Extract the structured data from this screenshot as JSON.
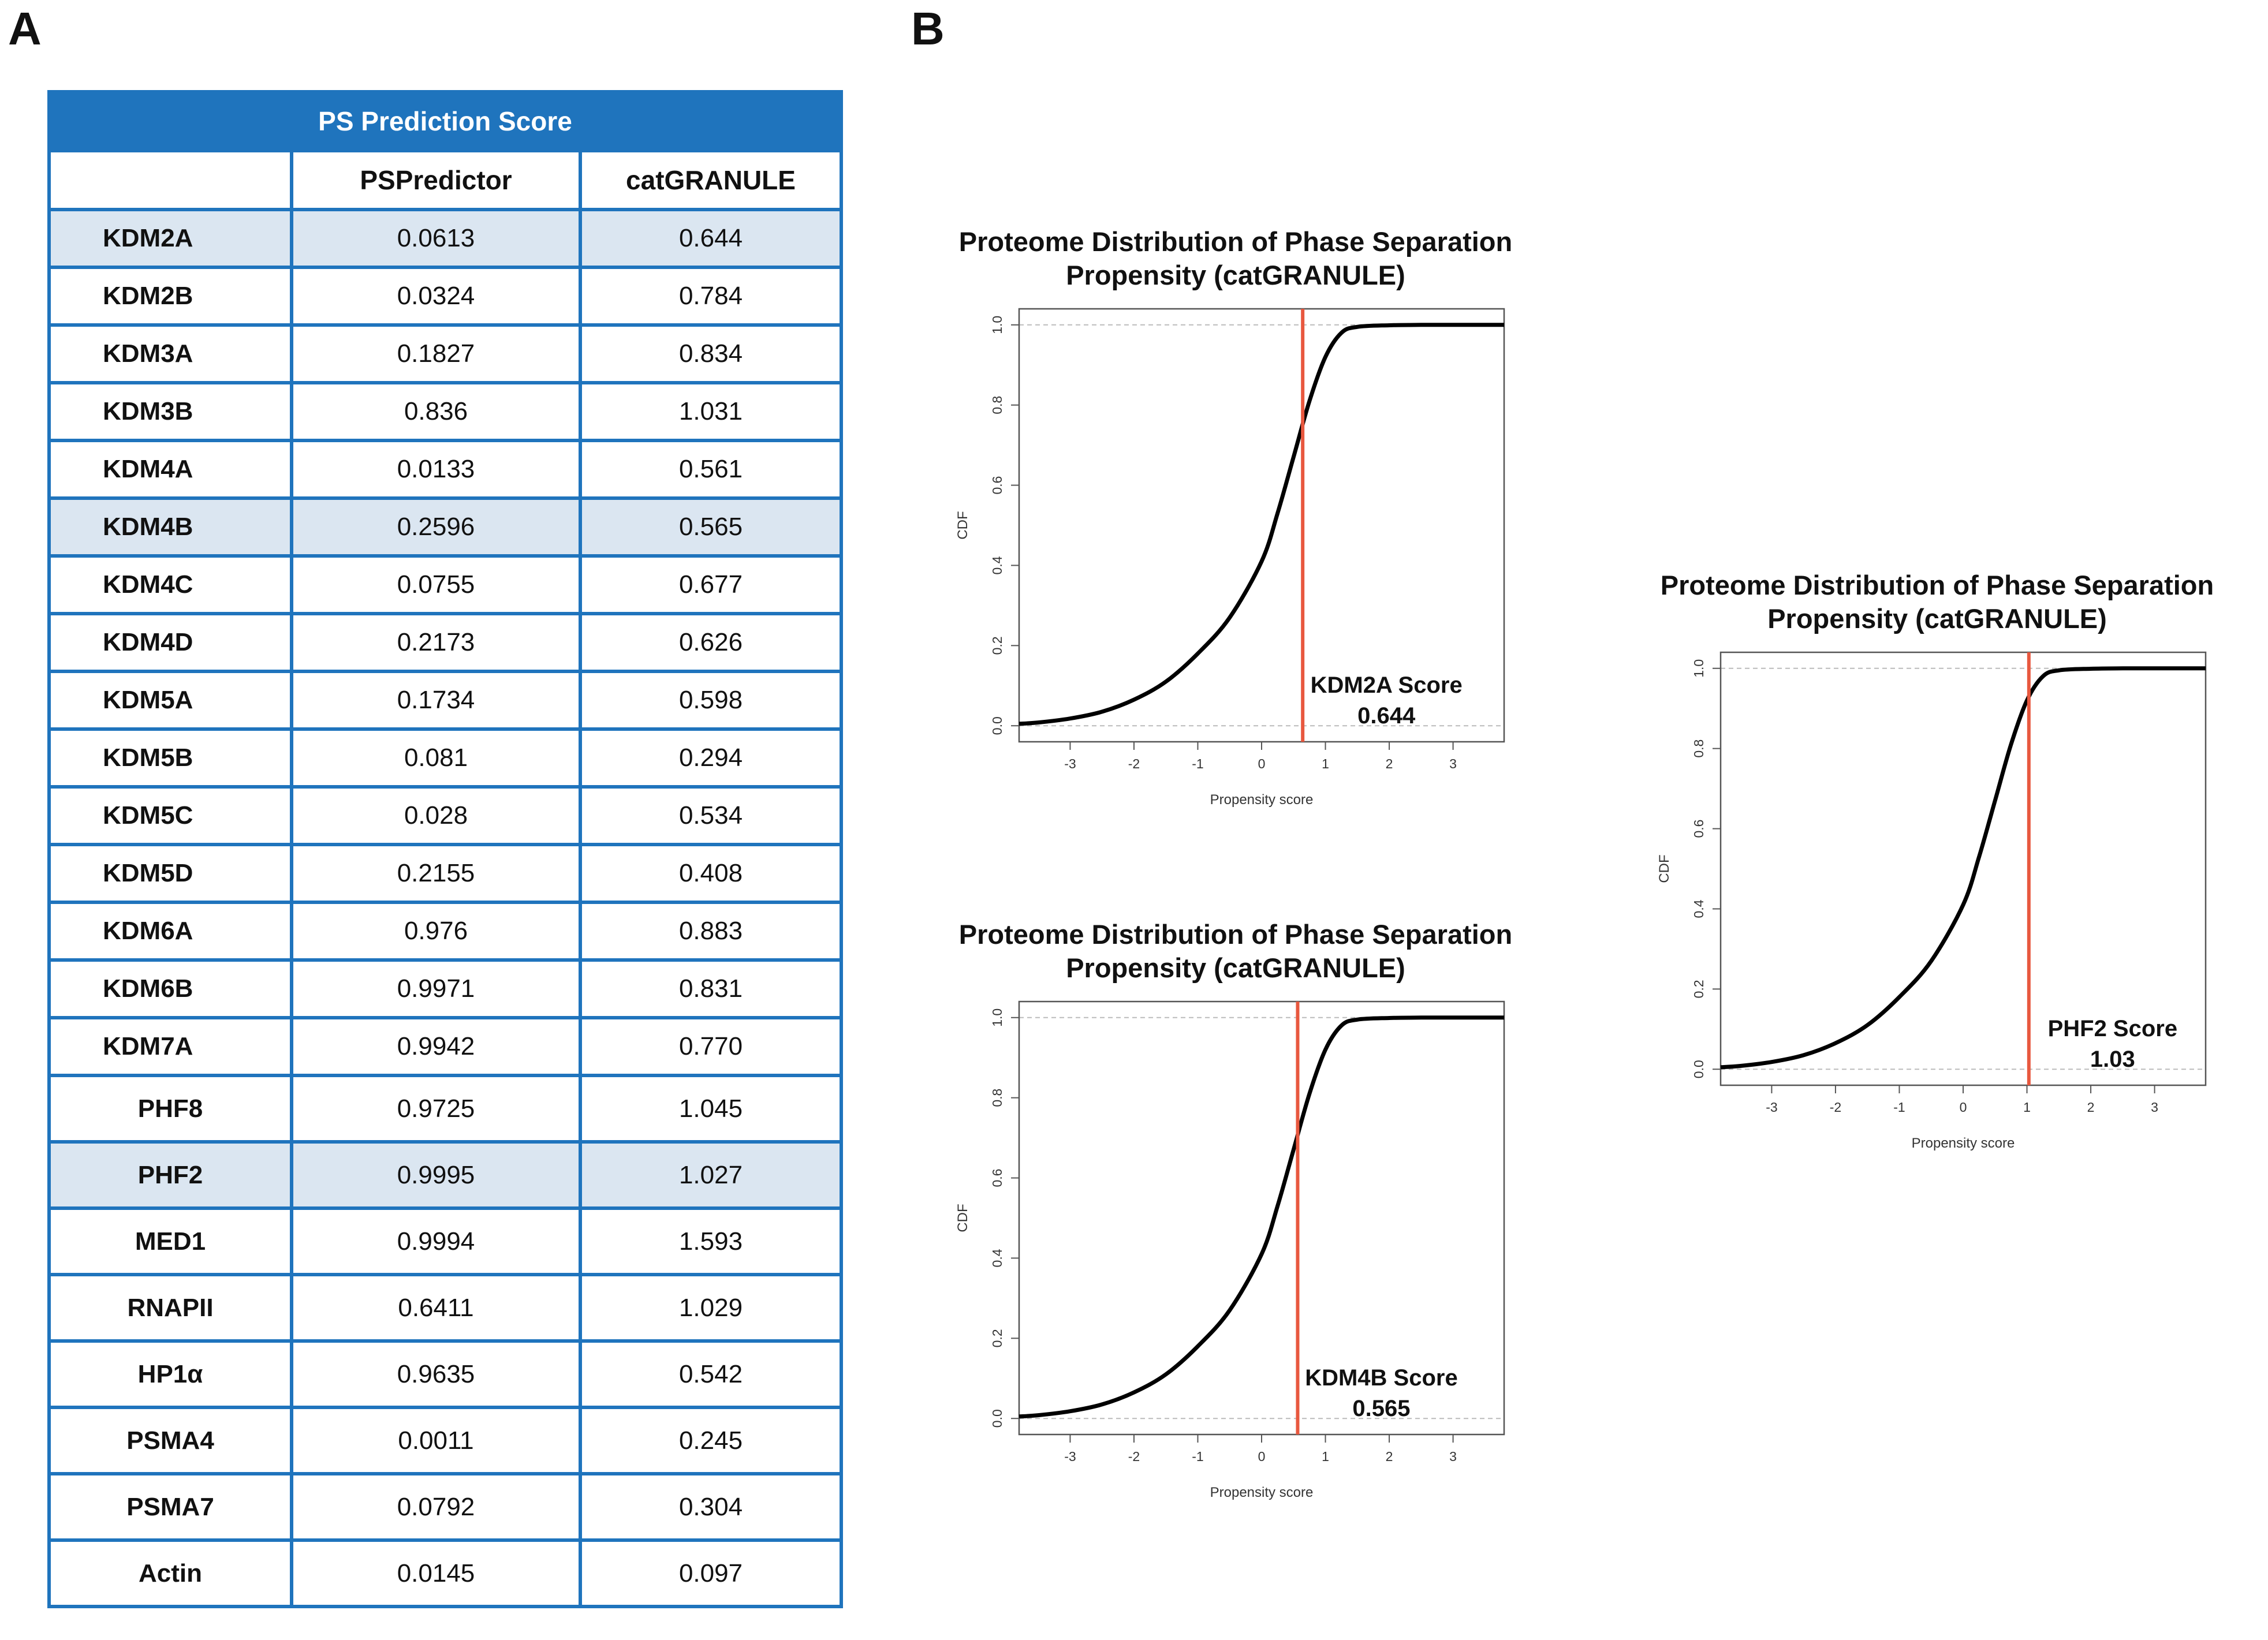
{
  "panels": {
    "a": "A",
    "b": "B"
  },
  "table": {
    "title": "PS Prediction Score",
    "columns": [
      "",
      "PSPredictor",
      "catGRANULE"
    ],
    "rows": [
      {
        "gene": "KDM2A",
        "pspredictor": "0.0613",
        "catgranule": "0.644",
        "highlight": true
      },
      {
        "gene": "KDM2B",
        "pspredictor": "0.0324",
        "catgranule": "0.784",
        "highlight": false
      },
      {
        "gene": "KDM3A",
        "pspredictor": "0.1827",
        "catgranule": "0.834",
        "highlight": false
      },
      {
        "gene": "KDM3B",
        "pspredictor": "0.836",
        "catgranule": "1.031",
        "highlight": false
      },
      {
        "gene": "KDM4A",
        "pspredictor": "0.0133",
        "catgranule": "0.561",
        "highlight": false
      },
      {
        "gene": "KDM4B",
        "pspredictor": "0.2596",
        "catgranule": "0.565",
        "highlight": true
      },
      {
        "gene": "KDM4C",
        "pspredictor": "0.0755",
        "catgranule": "0.677",
        "highlight": false
      },
      {
        "gene": "KDM4D",
        "pspredictor": "0.2173",
        "catgranule": "0.626",
        "highlight": false
      },
      {
        "gene": "KDM5A",
        "pspredictor": "0.1734",
        "catgranule": "0.598",
        "highlight": false
      },
      {
        "gene": "KDM5B",
        "pspredictor": "0.081",
        "catgranule": "0.294",
        "highlight": false
      },
      {
        "gene": "KDM5C",
        "pspredictor": "0.028",
        "catgranule": "0.534",
        "highlight": false
      },
      {
        "gene": "KDM5D",
        "pspredictor": "0.2155",
        "catgranule": "0.408",
        "highlight": false
      },
      {
        "gene": "KDM6A",
        "pspredictor": "0.976",
        "catgranule": "0.883",
        "highlight": false
      },
      {
        "gene": "KDM6B",
        "pspredictor": "0.9971",
        "catgranule": "0.831",
        "highlight": false
      },
      {
        "gene": "KDM7A",
        "pspredictor": "0.9942",
        "catgranule": "0.770",
        "highlight": false
      },
      {
        "gene": "PHF8",
        "pspredictor": "0.9725",
        "catgranule": "1.045",
        "highlight": false
      },
      {
        "gene": "PHF2",
        "pspredictor": "0.9995",
        "catgranule": "1.027",
        "highlight": true
      },
      {
        "gene": "MED1",
        "pspredictor": "0.9994",
        "catgranule": "1.593",
        "highlight": false
      },
      {
        "gene": "RNAPII",
        "pspredictor": "0.6411",
        "catgranule": "1.029",
        "highlight": false
      },
      {
        "gene": "HP1α",
        "pspredictor": "0.9635",
        "catgranule": "0.542",
        "highlight": false
      },
      {
        "gene": "PSMA4",
        "pspredictor": "0.0011",
        "catgranule": "0.245",
        "highlight": false
      },
      {
        "gene": "PSMA7",
        "pspredictor": "0.0792",
        "catgranule": "0.304",
        "highlight": false
      },
      {
        "gene": "Actin",
        "pspredictor": "0.0145",
        "catgranule": "0.097",
        "highlight": false
      }
    ]
  },
  "colors": {
    "table_border": "#1f74bd",
    "table_header_bg": "#1f74bd",
    "row_highlight": "#dbe6f1",
    "curve": "#000000",
    "score_line": "#e8583f",
    "ref_line": "#bbbbbb"
  },
  "chart_data": [
    {
      "type": "line",
      "title": [
        "Proteome Distribution of Phase Separation",
        "Propensity (catGRANULE)"
      ],
      "xlabel": "Propensity score",
      "ylabel": "CDF",
      "xlim": [
        -3.8,
        3.8
      ],
      "ylim": [
        -0.04,
        1.04
      ],
      "xticks": [
        -3,
        -2,
        -1,
        0,
        1,
        2,
        3
      ],
      "yticks": [
        0.0,
        0.2,
        0.4,
        0.6,
        0.8,
        1.0
      ],
      "ytick_labels": [
        "0.0",
        "0.2",
        "0.4",
        "0.6",
        "0.8",
        "1.0"
      ],
      "reference_lines_y": [
        0,
        1
      ],
      "series": [
        {
          "x": [
            -3.8,
            -3.5,
            -3.0,
            -2.5,
            -2.0,
            -1.5,
            -1.0,
            -0.5,
            0.0,
            0.25,
            0.5,
            0.75,
            1.0,
            1.25,
            1.5,
            2.0,
            2.5,
            3.0,
            3.8
          ],
          "y": [
            0.005,
            0.008,
            0.018,
            0.035,
            0.065,
            0.11,
            0.18,
            0.27,
            0.41,
            0.53,
            0.67,
            0.81,
            0.92,
            0.98,
            0.995,
            0.999,
            1.0,
            1.0,
            1.0
          ]
        }
      ],
      "score_line": {
        "x": 0.644,
        "label": "KDM2A Score",
        "value": "0.644"
      }
    },
    {
      "type": "line",
      "title": [
        "Proteome Distribution of Phase Separation",
        "Propensity (catGRANULE)"
      ],
      "xlabel": "Propensity score",
      "ylabel": "CDF",
      "xlim": [
        -3.8,
        3.8
      ],
      "ylim": [
        -0.04,
        1.04
      ],
      "xticks": [
        -3,
        -2,
        -1,
        0,
        1,
        2,
        3
      ],
      "yticks": [
        0.0,
        0.2,
        0.4,
        0.6,
        0.8,
        1.0
      ],
      "ytick_labels": [
        "0.0",
        "0.2",
        "0.4",
        "0.6",
        "0.8",
        "1.0"
      ],
      "reference_lines_y": [
        0,
        1
      ],
      "series": [
        {
          "x": [
            -3.8,
            -3.5,
            -3.0,
            -2.5,
            -2.0,
            -1.5,
            -1.0,
            -0.5,
            0.0,
            0.25,
            0.5,
            0.75,
            1.0,
            1.25,
            1.5,
            2.0,
            2.5,
            3.0,
            3.8
          ],
          "y": [
            0.005,
            0.008,
            0.018,
            0.035,
            0.065,
            0.11,
            0.18,
            0.27,
            0.41,
            0.53,
            0.67,
            0.81,
            0.92,
            0.98,
            0.995,
            0.999,
            1.0,
            1.0,
            1.0
          ]
        }
      ],
      "score_line": {
        "x": 0.565,
        "label": "KDM4B Score",
        "value": "0.565"
      }
    },
    {
      "type": "line",
      "title": [
        "Proteome Distribution of Phase Separation",
        "Propensity (catGRANULE)"
      ],
      "xlabel": "Propensity score",
      "ylabel": "CDF",
      "xlim": [
        -3.8,
        3.8
      ],
      "ylim": [
        -0.04,
        1.04
      ],
      "xticks": [
        -3,
        -2,
        -1,
        0,
        1,
        2,
        3
      ],
      "yticks": [
        0.0,
        0.2,
        0.4,
        0.6,
        0.8,
        1.0
      ],
      "ytick_labels": [
        "0.0",
        "0.2",
        "0.4",
        "0.6",
        "0.8",
        "1.0"
      ],
      "reference_lines_y": [
        0,
        1
      ],
      "series": [
        {
          "x": [
            -3.8,
            -3.5,
            -3.0,
            -2.5,
            -2.0,
            -1.5,
            -1.0,
            -0.5,
            0.0,
            0.25,
            0.5,
            0.75,
            1.0,
            1.25,
            1.5,
            2.0,
            2.5,
            3.0,
            3.8
          ],
          "y": [
            0.005,
            0.008,
            0.018,
            0.035,
            0.065,
            0.11,
            0.18,
            0.27,
            0.41,
            0.53,
            0.67,
            0.81,
            0.92,
            0.98,
            0.995,
            0.999,
            1.0,
            1.0,
            1.0
          ]
        }
      ],
      "score_line": {
        "x": 1.03,
        "label": "PHF2 Score",
        "value": "1.03"
      }
    }
  ]
}
